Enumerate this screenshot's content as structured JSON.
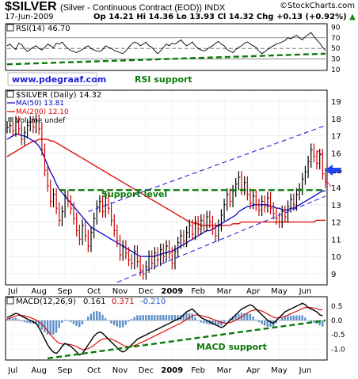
{
  "header": {
    "symbol": "$SILVER",
    "description": "(Silver - Continuous Contract (EOD)) INDX",
    "brand": "StockCharts.com",
    "copyright": "©",
    "date": "17-Jun-2009",
    "quote": "Op 14.21  Hi 14.36  Lo 13.93  Cl 14.32  Chg +0.13 (+0.92%)",
    "quote_up_icon": "up-triangle-icon"
  },
  "colors": {
    "price": "#000000",
    "ma50": "#0000cc",
    "ma200": "#dd0000",
    "up_bar": "#000000",
    "down_bar": "#cc0000",
    "annotation_blue": "#2020dd",
    "annotation_green": "#0a7a0a",
    "macd_hist": "#5b8fc8",
    "arrow": "#2244ee",
    "arrow_pink": "#dd2277"
  },
  "chart_data": [
    {
      "panel": "rsi",
      "type": "line",
      "label": "RSI(14) 46.70",
      "ylim": [
        10,
        95
      ],
      "yticks": [
        10,
        30,
        50,
        70,
        90
      ],
      "reference_lines": [
        30,
        50,
        70
      ],
      "values": [
        55,
        58,
        52,
        48,
        60,
        57,
        50,
        44,
        48,
        52,
        55,
        50,
        47,
        52,
        58,
        55,
        51,
        60,
        58,
        62,
        55,
        50,
        46,
        44,
        42,
        45,
        48,
        52,
        55,
        50,
        47,
        45,
        44,
        48,
        55,
        52,
        50,
        46,
        44,
        42,
        40,
        45,
        52,
        58,
        62,
        60,
        55,
        58,
        62,
        55,
        52,
        46,
        40,
        45,
        52,
        58,
        55,
        60,
        58,
        62,
        66,
        60,
        55,
        58,
        62,
        55,
        50,
        47,
        45,
        48,
        52,
        55,
        60,
        63,
        58,
        55,
        48,
        45,
        42,
        48,
        52,
        55,
        60,
        62,
        58,
        55,
        52,
        45,
        40,
        44,
        48,
        52,
        55,
        58,
        60,
        62,
        65,
        70,
        68,
        72,
        75,
        70,
        66,
        72,
        76,
        80,
        72,
        66,
        60,
        52,
        46.7
      ],
      "annotations": [
        {
          "text": "RSI support",
          "kind": "trendline",
          "from": [
            0,
            20
          ],
          "to": [
            110,
            40
          ]
        }
      ]
    },
    {
      "panel": "price",
      "type": "ohlc",
      "label": "$SILVER (Daily) 14.32",
      "ylim": [
        8.4,
        19.6
      ],
      "yticks": [
        9,
        10,
        11,
        12,
        13,
        14,
        15,
        16,
        17,
        18,
        19
      ],
      "x_labels": [
        "Jul",
        "Aug",
        "Sep",
        "Oct",
        "Nov",
        "Dec",
        "2009",
        "Feb",
        "Mar",
        "Apr",
        "May",
        "Jun"
      ],
      "legend": [
        {
          "name": "MA(50) 13.81",
          "color": "#0000cc"
        },
        {
          "name": "MA(200) 12.10",
          "color": "#dd0000"
        },
        {
          "name": "Volume undef",
          "color": "#888888"
        }
      ],
      "close": [
        17.5,
        17.6,
        17.3,
        17.8,
        17.4,
        16.8,
        17.2,
        17.6,
        17.8,
        17.5,
        17.9,
        17.4,
        16.2,
        15.0,
        14.1,
        13.2,
        13.6,
        12.8,
        12.1,
        12.6,
        13.5,
        13.2,
        12.8,
        12.2,
        11.5,
        11.0,
        11.8,
        11.2,
        10.6,
        11.4,
        12.2,
        12.9,
        13.2,
        12.6,
        13.4,
        12.8,
        12.1,
        11.5,
        10.9,
        10.1,
        10.6,
        10.2,
        9.8,
        9.6,
        10.3,
        9.7,
        9.2,
        9.0,
        9.4,
        10.0,
        9.6,
        10.2,
        9.8,
        10.4,
        10.0,
        10.6,
        10.2,
        9.6,
        10.3,
        10.8,
        11.2,
        10.9,
        11.4,
        11.8,
        11.3,
        12.0,
        11.6,
        12.1,
        11.8,
        12.3,
        12.0,
        11.6,
        11.2,
        11.8,
        12.4,
        13.0,
        13.6,
        13.2,
        13.8,
        14.2,
        14.6,
        13.9,
        14.3,
        13.6,
        13.1,
        13.5,
        13.0,
        12.7,
        13.2,
        12.9,
        13.4,
        12.8,
        12.5,
        12.2,
        12.0,
        12.6,
        12.3,
        12.9,
        13.3,
        13.0,
        13.6,
        13.9,
        14.5,
        14.9,
        15.5,
        16.2,
        15.8,
        15.4,
        15.9,
        14.8,
        14.32
      ],
      "ma50": [
        16.8,
        16.9,
        17.0,
        17.1,
        17.1,
        17.0,
        17.0,
        16.9,
        16.8,
        16.7,
        16.6,
        16.4,
        16.1,
        15.7,
        15.3,
        14.9,
        14.6,
        14.2,
        13.9,
        13.7,
        13.5,
        13.3,
        13.1,
        12.9,
        12.7,
        12.5,
        12.3,
        12.1,
        11.9,
        11.7,
        11.6,
        11.5,
        11.4,
        11.3,
        11.2,
        11.1,
        11.0,
        10.9,
        10.8,
        10.7,
        10.6,
        10.5,
        10.4,
        10.3,
        10.2,
        10.1,
        10.0,
        10.0,
        10.0,
        10.0,
        10.0,
        10.0,
        10.1,
        10.1,
        10.2,
        10.2,
        10.3,
        10.3,
        10.4,
        10.5,
        10.6,
        10.7,
        10.8,
        10.9,
        11.0,
        11.1,
        11.2,
        11.3,
        11.4,
        11.5,
        11.5,
        11.6,
        11.7,
        11.8,
        11.9,
        12.0,
        12.1,
        12.2,
        12.3,
        12.4,
        12.6,
        12.7,
        12.8,
        12.9,
        12.9,
        13.0,
        13.0,
        13.0,
        13.0,
        13.0,
        13.0,
        12.9,
        12.9,
        12.8,
        12.8,
        12.7,
        12.7,
        12.7,
        12.8,
        12.8,
        12.9,
        13.0,
        13.1,
        13.2,
        13.3,
        13.4,
        13.5,
        13.6,
        13.7,
        13.8,
        13.81
      ],
      "ma200": [
        15.8,
        15.9,
        16.0,
        16.1,
        16.2,
        16.3,
        16.4,
        16.5,
        16.6,
        16.7,
        16.7,
        16.8,
        16.8,
        16.8,
        16.8,
        16.7,
        16.7,
        16.6,
        16.5,
        16.4,
        16.3,
        16.2,
        16.1,
        16.0,
        15.9,
        15.8,
        15.7,
        15.6,
        15.5,
        15.4,
        15.3,
        15.2,
        15.1,
        15.0,
        14.9,
        14.8,
        14.7,
        14.6,
        14.5,
        14.4,
        14.3,
        14.2,
        14.1,
        14.0,
        13.9,
        13.8,
        13.7,
        13.6,
        13.5,
        13.4,
        13.3,
        13.2,
        13.1,
        13.0,
        12.9,
        12.8,
        12.7,
        12.6,
        12.5,
        12.4,
        12.3,
        12.2,
        12.1,
        12.0,
        12.0,
        11.9,
        11.9,
        11.8,
        11.8,
        11.8,
        11.8,
        11.8,
        11.8,
        11.8,
        11.8,
        11.8,
        11.8,
        11.8,
        11.9,
        11.9,
        11.9,
        12.0,
        12.0,
        12.0,
        12.0,
        12.0,
        12.0,
        12.0,
        12.0,
        12.0,
        12.0,
        12.0,
        12.0,
        12.0,
        12.0,
        12.0,
        12.0,
        12.0,
        12.0,
        12.0,
        12.0,
        12.0,
        12.0,
        12.0,
        12.0,
        12.0,
        12.0,
        12.1,
        12.1,
        12.1,
        12.1
      ],
      "annotations": [
        {
          "text": "Support level",
          "kind": "horizontal",
          "value": 13.85,
          "from": 18,
          "to": 110
        },
        {
          "text": "",
          "kind": "channel-upper",
          "from": [
            28,
            12.6
          ],
          "to": [
            110,
            17.6
          ]
        },
        {
          "text": "",
          "kind": "channel-lower",
          "from": [
            38,
            8.5
          ],
          "to": [
            110,
            13.5
          ]
        }
      ]
    },
    {
      "panel": "macd",
      "type": "line",
      "label": "MACD(12,26,9)",
      "values_label": [
        "0.161",
        "0.371",
        "-0.210"
      ],
      "ylim": [
        -1.35,
        0.8
      ],
      "yticks": [
        -1.0,
        -0.5,
        0.0,
        0.5
      ],
      "x_labels": [
        "Jul",
        "Aug",
        "Sep",
        "Oct",
        "Nov",
        "Dec",
        "2009",
        "Feb",
        "Mar",
        "Apr",
        "May",
        "Jun"
      ],
      "macd": [
        0.1,
        0.15,
        0.2,
        0.25,
        0.22,
        0.15,
        0.1,
        0.05,
        0.0,
        -0.05,
        -0.1,
        -0.25,
        -0.45,
        -0.65,
        -0.85,
        -1.0,
        -1.1,
        -1.15,
        -1.05,
        -0.9,
        -0.8,
        -0.85,
        -0.9,
        -1.0,
        -1.1,
        -1.2,
        -1.15,
        -1.0,
        -0.85,
        -0.7,
        -0.55,
        -0.45,
        -0.4,
        -0.45,
        -0.55,
        -0.65,
        -0.75,
        -0.85,
        -0.95,
        -1.05,
        -1.1,
        -1.05,
        -0.95,
        -0.85,
        -0.75,
        -0.65,
        -0.6,
        -0.55,
        -0.5,
        -0.45,
        -0.4,
        -0.35,
        -0.3,
        -0.25,
        -0.2,
        -0.15,
        -0.1,
        -0.05,
        0.0,
        0.05,
        0.1,
        0.2,
        0.3,
        0.35,
        0.4,
        0.3,
        0.2,
        0.1,
        0.05,
        0.0,
        -0.05,
        -0.1,
        -0.15,
        -0.2,
        -0.25,
        -0.2,
        -0.1,
        0.0,
        0.1,
        0.2,
        0.3,
        0.4,
        0.45,
        0.5,
        0.55,
        0.5,
        0.4,
        0.3,
        0.2,
        0.1,
        0.0,
        -0.05,
        -0.1,
        0.0,
        0.1,
        0.2,
        0.3,
        0.35,
        0.4,
        0.45,
        0.5,
        0.55,
        0.6,
        0.55,
        0.45,
        0.4,
        0.35,
        0.3,
        0.2,
        0.161
      ],
      "signal": [
        0.05,
        0.08,
        0.12,
        0.16,
        0.18,
        0.18,
        0.16,
        0.13,
        0.1,
        0.06,
        0.02,
        -0.05,
        -0.13,
        -0.24,
        -0.36,
        -0.49,
        -0.61,
        -0.72,
        -0.79,
        -0.82,
        -0.82,
        -0.83,
        -0.84,
        -0.87,
        -0.91,
        -0.97,
        -1.01,
        -1.01,
        -0.98,
        -0.93,
        -0.86,
        -0.78,
        -0.7,
        -0.65,
        -0.63,
        -0.63,
        -0.65,
        -0.69,
        -0.74,
        -0.8,
        -0.86,
        -0.9,
        -0.91,
        -0.9,
        -0.87,
        -0.83,
        -0.78,
        -0.74,
        -0.69,
        -0.64,
        -0.59,
        -0.54,
        -0.49,
        -0.44,
        -0.39,
        -0.34,
        -0.29,
        -0.24,
        -0.19,
        -0.14,
        -0.09,
        -0.03,
        0.04,
        0.1,
        0.16,
        0.19,
        0.19,
        0.17,
        0.15,
        0.12,
        0.09,
        0.05,
        0.01,
        -0.03,
        -0.07,
        -0.09,
        -0.09,
        -0.07,
        -0.04,
        0.01,
        0.07,
        0.13,
        0.2,
        0.26,
        0.32,
        0.36,
        0.37,
        0.36,
        0.33,
        0.28,
        0.22,
        0.17,
        0.11,
        0.09,
        0.09,
        0.11,
        0.15,
        0.19,
        0.23,
        0.28,
        0.32,
        0.37,
        0.42,
        0.45,
        0.45,
        0.45,
        0.43,
        0.41,
        0.37,
        0.371
      ],
      "annotations": [
        {
          "text": "MACD support",
          "kind": "trendline",
          "from": [
            14,
            -1.32
          ],
          "to": [
            110,
            0.0
          ]
        }
      ]
    }
  ],
  "annotations": {
    "rsi_support": "RSI support",
    "support_level": "Support level",
    "macd_support": "MACD support",
    "watermark": "www.pdegraaf.com"
  }
}
